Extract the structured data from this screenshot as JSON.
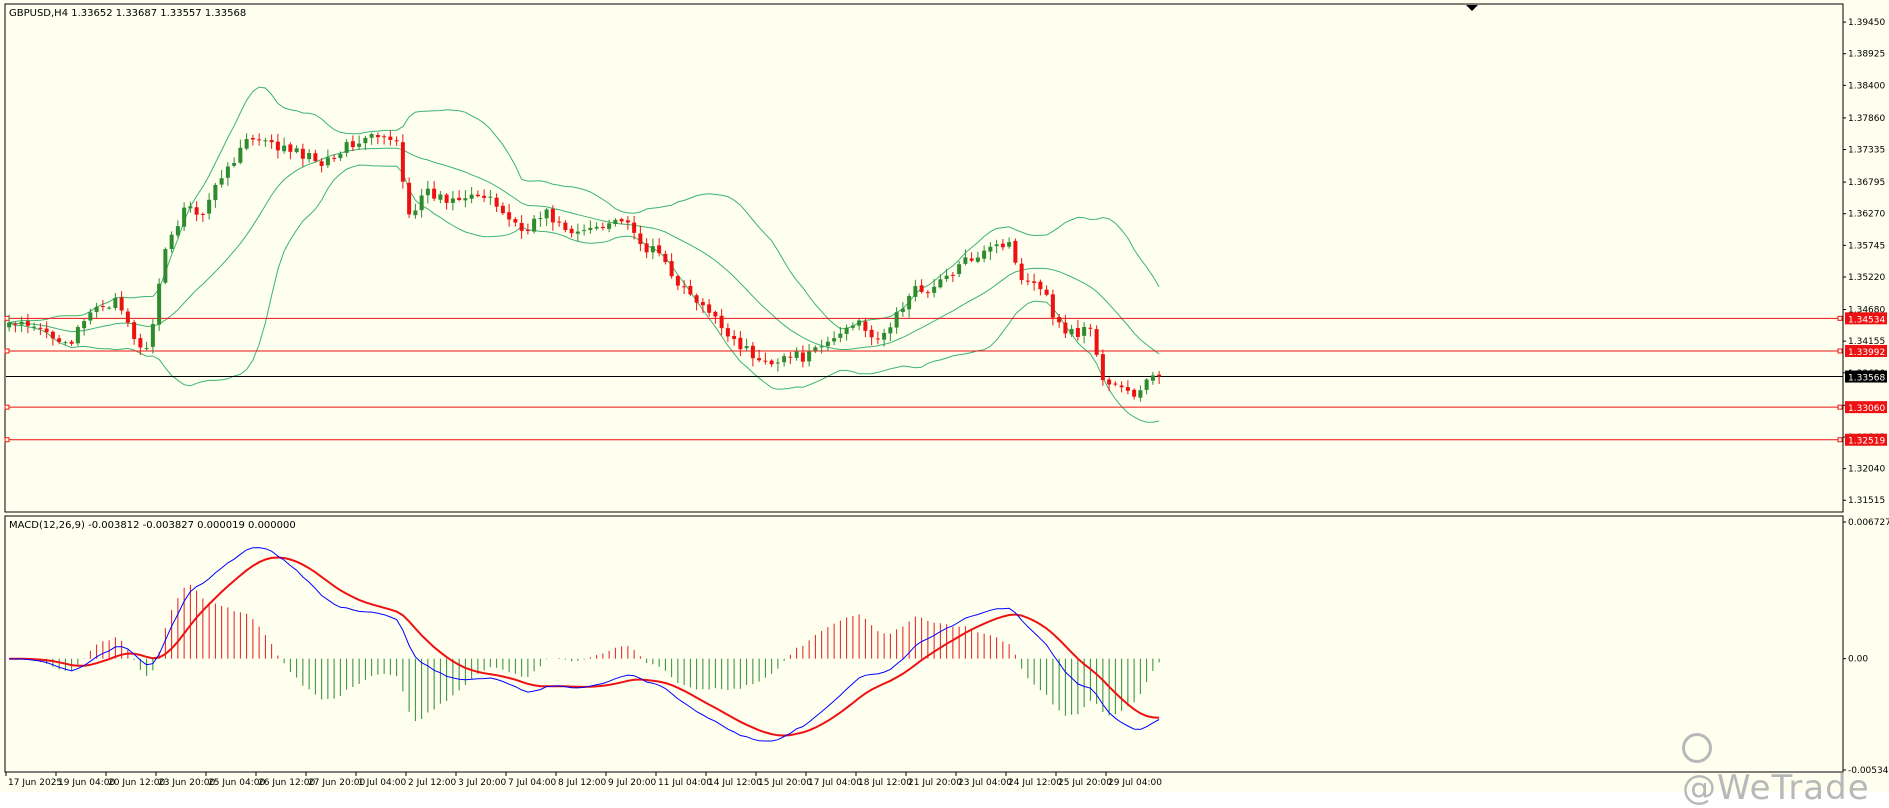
{
  "header": {
    "symbol_info": "GBPUSD,H4  1.33652 1.33687 1.33557 1.33568"
  },
  "indicator": {
    "label": "MACD(12,26,9) -0.003812 -0.003827 0.000019 0.000000"
  },
  "watermark": {
    "text": "@WeTrade",
    "logo_icon": "wetrade-logo-icon"
  },
  "colors": {
    "background": "#fffff0",
    "frame": "#000000",
    "bull": "#2e8b2e",
    "bear": "#ee1111",
    "bands": "#3cb371",
    "level_line": "#ee1111",
    "price_line": "#000000",
    "macd_main": "#0000ff",
    "macd_signal": "#ee1111",
    "hist_pos": "#e41a1c",
    "hist_neg": "#2e8b2e"
  },
  "chart_data": [
    {
      "type": "candlestick",
      "name_of_panel": "price",
      "symbol": "GBPUSD",
      "timeframe": "H4",
      "ylim": [
        1.3132,
        1.3975
      ],
      "y_ticks": [
        "1.39450",
        "1.38925",
        "1.38400",
        "1.37860",
        "1.37335",
        "1.36795",
        "1.36270",
        "1.35745",
        "1.35220",
        "1.34680",
        "1.34155",
        "1.33630",
        "1.33090",
        "1.32565",
        "1.32040",
        "1.31515"
      ],
      "x_tick_labels": [
        "17 Jun 2025",
        "19 Jun 04:00",
        "20 Jun 12:00",
        "23 Jun 20:00",
        "25 Jun 04:00",
        "26 Jun 12:00",
        "27 Jun 20:00",
        "1 Jul 04:00",
        "2 Jul 12:00",
        "3 Jul 20:00",
        "7 Jul 04:00",
        "8 Jul 12:00",
        "9 Jul 20:00",
        "11 Jul 04:00",
        "14 Jul 12:00",
        "15 Jul 20:00",
        "17 Jul 04:00",
        "18 Jul 12:00",
        "21 Jul 20:00",
        "23 Jul 04:00",
        "24 Jul 12:00",
        "25 Jul 20:00",
        "29 Jul 04:00"
      ],
      "x_tick_bar_index": [
        0,
        8,
        16,
        24,
        32,
        40,
        48,
        56,
        64,
        72,
        80,
        88,
        96,
        104,
        112,
        120,
        128,
        136,
        144,
        152,
        160,
        168,
        176
      ],
      "close_anchors": [
        [
          0,
          1.3445
        ],
        [
          6,
          1.343
        ],
        [
          10,
          1.3415
        ],
        [
          14,
          1.3475
        ],
        [
          17,
          1.348
        ],
        [
          20,
          1.342
        ],
        [
          22,
          1.3398
        ],
        [
          25,
          1.356
        ],
        [
          28,
          1.364
        ],
        [
          31,
          1.363
        ],
        [
          34,
          1.369
        ],
        [
          38,
          1.375
        ],
        [
          42,
          1.374
        ],
        [
          46,
          1.3728
        ],
        [
          50,
          1.3715
        ],
        [
          54,
          1.3738
        ],
        [
          58,
          1.3755
        ],
        [
          62,
          1.3745
        ],
        [
          64,
          1.363
        ],
        [
          67,
          1.366
        ],
        [
          70,
          1.365
        ],
        [
          74,
          1.3665
        ],
        [
          78,
          1.364
        ],
        [
          82,
          1.36
        ],
        [
          86,
          1.3628
        ],
        [
          90,
          1.359
        ],
        [
          94,
          1.361
        ],
        [
          98,
          1.3618
        ],
        [
          101,
          1.3575
        ],
        [
          104,
          1.356
        ],
        [
          108,
          1.35
        ],
        [
          112,
          1.346
        ],
        [
          116,
          1.342
        ],
        [
          120,
          1.338
        ],
        [
          124,
          1.339
        ],
        [
          128,
          1.339
        ],
        [
          132,
          1.342
        ],
        [
          136,
          1.3455
        ],
        [
          139,
          1.341
        ],
        [
          142,
          1.346
        ],
        [
          145,
          1.35
        ],
        [
          148,
          1.3505
        ],
        [
          151,
          1.353
        ],
        [
          154,
          1.3555
        ],
        [
          157,
          1.3578
        ],
        [
          160,
          1.3575
        ],
        [
          162,
          1.3525
        ],
        [
          165,
          1.351
        ],
        [
          168,
          1.344
        ],
        [
          171,
          1.3428
        ],
        [
          173,
          1.344
        ],
        [
          175,
          1.335
        ],
        [
          178,
          1.3335
        ],
        [
          180,
          1.3325
        ],
        [
          182,
          1.335
        ],
        [
          184,
          1.3357
        ]
      ],
      "last_close": 1.33568,
      "levels": [
        {
          "price": 1.34534,
          "label": "1.34534",
          "color": "#ee1111"
        },
        {
          "price": 1.33992,
          "label": "1.33992",
          "color": "#ee1111"
        },
        {
          "price": 1.33568,
          "label": "1.33568",
          "color": "#000000"
        },
        {
          "price": 1.3306,
          "label": "1.33060",
          "color": "#ee1111"
        },
        {
          "price": 1.32519,
          "label": "1.32519",
          "color": "#ee1111"
        }
      ],
      "overlay": {
        "type": "bollinger_bands",
        "period": 20,
        "deviation": 2
      }
    },
    {
      "type": "macd",
      "name_of_panel": "macd",
      "params": [
        12,
        26,
        9
      ],
      "values": {
        "main": -0.003812,
        "signal": -0.003827,
        "histogram": 1.9e-05,
        "extra": 0.0
      },
      "ylim": [
        -0.005342,
        0.006727
      ],
      "y_ticks": [
        "0.006727",
        "0.00",
        "-0.005342"
      ],
      "series": [
        {
          "name": "Main"
        },
        {
          "name": "Signal"
        },
        {
          "name": "Histogram"
        }
      ]
    }
  ]
}
